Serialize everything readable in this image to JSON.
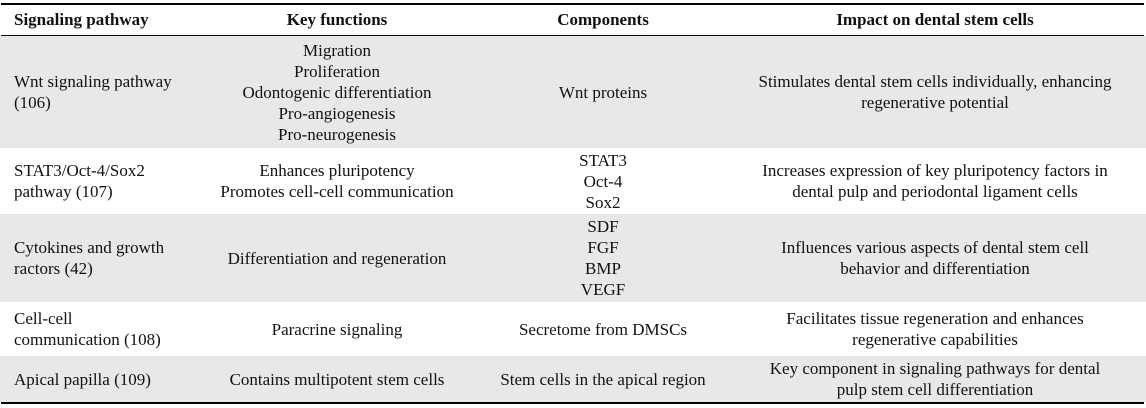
{
  "table": {
    "headers": [
      "Signaling pathway",
      "Key functions",
      "Components",
      "Impact on dental stem cells"
    ],
    "rows": [
      {
        "pathway": [
          "Wnt signaling pathway",
          "(106)"
        ],
        "functions": [
          "Migration",
          "Proliferation",
          "Odontogenic differentiation",
          "Pro-angiogenesis",
          "Pro-neurogenesis"
        ],
        "components": [
          "Wnt proteins"
        ],
        "impact": [
          "Stimulates dental stem cells individually, enhancing",
          "regenerative potential"
        ]
      },
      {
        "pathway": [
          "STAT3/Oct-4/Sox2",
          "pathway (107)"
        ],
        "functions": [
          "Enhances pluripotency",
          "Promotes cell-cell communication"
        ],
        "components": [
          "STAT3",
          "Oct-4",
          "Sox2"
        ],
        "impact": [
          "Increases expression of key pluripotency factors in",
          "dental pulp and periodontal ligament cells"
        ]
      },
      {
        "pathway": [
          "Cytokines and growth",
          "ractors (42)"
        ],
        "functions": [
          "Differentiation and regeneration"
        ],
        "components": [
          "SDF",
          "FGF",
          "BMP",
          "VEGF"
        ],
        "impact": [
          "Influences various aspects of dental stem cell",
          "behavior and differentiation"
        ]
      },
      {
        "pathway": [
          "Cell-cell",
          "communication (108)"
        ],
        "functions": [
          "Paracrine signaling"
        ],
        "components": [
          "Secretome from DMSCs"
        ],
        "impact": [
          "Facilitates tissue regeneration and enhances",
          "regenerative capabilities"
        ]
      },
      {
        "pathway": [
          "Apical papilla (109)"
        ],
        "functions": [
          "Contains multipotent stem cells"
        ],
        "components": [
          "Stem cells in the apical region"
        ],
        "impact": [
          "Key component in signaling pathways for dental",
          "pulp stem cell differentiation"
        ]
      }
    ]
  }
}
